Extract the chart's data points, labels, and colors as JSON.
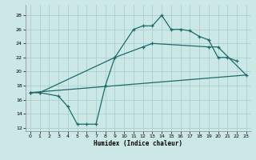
{
  "xlabel": "Humidex (Indice chaleur)",
  "background_color": "#cce8e6",
  "grid_color": "#aacfcd",
  "line_color": "#1a6b6b",
  "xlim": [
    -0.5,
    23.5
  ],
  "ylim": [
    11.5,
    29.5
  ],
  "yticks": [
    12,
    14,
    16,
    18,
    20,
    22,
    24,
    26,
    28
  ],
  "xticks": [
    0,
    1,
    2,
    3,
    4,
    5,
    6,
    7,
    8,
    9,
    10,
    11,
    12,
    13,
    14,
    15,
    16,
    17,
    18,
    19,
    20,
    21,
    22,
    23
  ],
  "curve1_x": [
    0,
    1,
    3,
    4,
    5,
    6,
    7,
    8,
    9,
    11,
    12,
    13,
    14,
    15,
    16,
    17,
    18,
    19,
    20,
    21,
    22
  ],
  "curve1_y": [
    17,
    17,
    16.5,
    15,
    12.5,
    12.5,
    12.5,
    18,
    22,
    26,
    26.5,
    26.5,
    28,
    26,
    26,
    25.8,
    25,
    24.5,
    22,
    22,
    21.5
  ],
  "curve2_x": [
    0,
    1,
    9,
    12,
    13,
    19,
    20,
    23
  ],
  "curve2_y": [
    17,
    17,
    22,
    23.5,
    24,
    23.5,
    23.5,
    19.5
  ],
  "curve3_x": [
    0,
    23
  ],
  "curve3_y": [
    17,
    19.5
  ]
}
